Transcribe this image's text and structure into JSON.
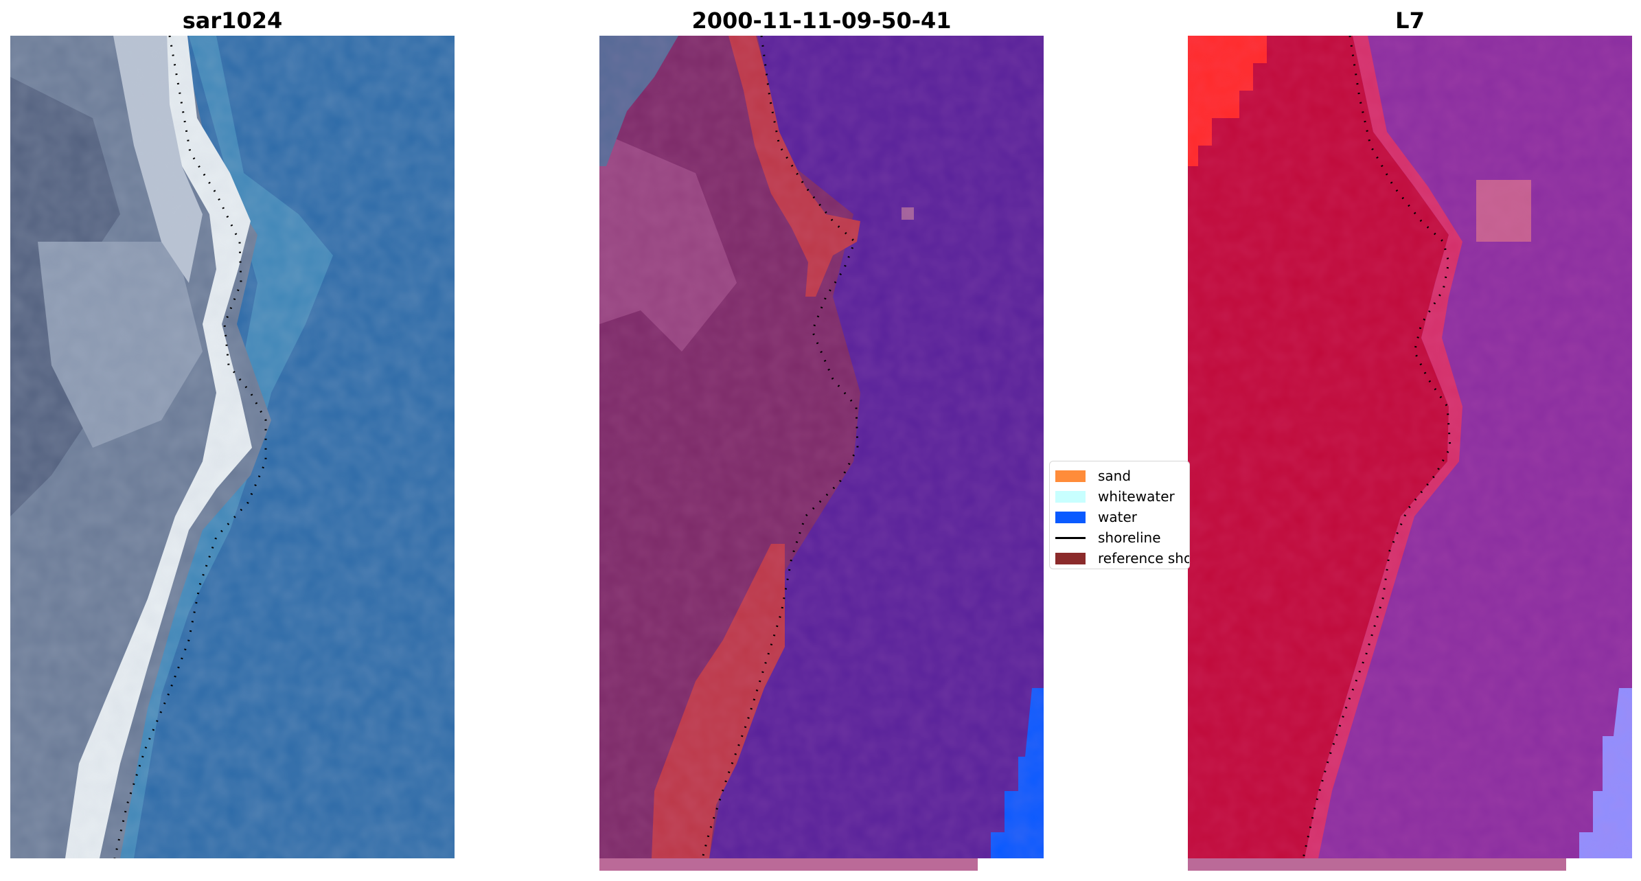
{
  "panels": [
    {
      "title": "sar1024"
    },
    {
      "title": "2000-11-11-09-50-41"
    },
    {
      "title": "L7"
    }
  ],
  "legend": {
    "items": [
      {
        "label": "sand",
        "color": "#ff8c3a",
        "kind": "patch"
      },
      {
        "label": "whitewater",
        "color": "#c8ffff",
        "kind": "patch"
      },
      {
        "label": "water",
        "color": "#0a5aff",
        "kind": "patch"
      },
      {
        "label": "shoreline",
        "color": "#000000",
        "kind": "line"
      },
      {
        "label": "reference shoreline",
        "color": "#8b2b2b",
        "kind": "patch"
      }
    ]
  },
  "colors": {
    "rgb_water": "#2c6aa8",
    "rgb_land": "#6a7a96",
    "rgb_sand": "#e8eef2",
    "class_water": "#58219a",
    "class_land": "#7c2a68",
    "class_sand": "#bc3848",
    "class_water_bright": "#0a5aff",
    "l7_land": "#c00a3a",
    "l7_water": "#8a2ea0",
    "l7_bright": "#8f8fff",
    "l7_sat": "#ff2a2a",
    "strip": "#bb6a98"
  }
}
